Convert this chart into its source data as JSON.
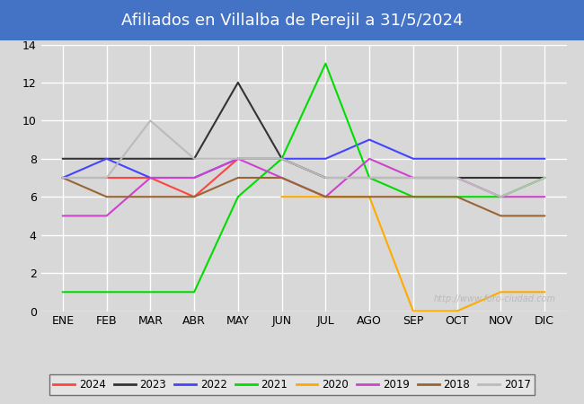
{
  "title": "Afiliados en Villalba de Perejil a 31/5/2024",
  "title_bg_color": "#4472c4",
  "title_text_color": "#ffffff",
  "months": [
    "ENE",
    "FEB",
    "MAR",
    "ABR",
    "MAY",
    "JUN",
    "JUL",
    "AGO",
    "SEP",
    "OCT",
    "NOV",
    "DIC"
  ],
  "ylim": [
    0,
    14
  ],
  "yticks": [
    0,
    2,
    4,
    6,
    8,
    10,
    12,
    14
  ],
  "watermark": "http://www.foro-ciudad.com",
  "series": {
    "2024": {
      "color": "#ff4444",
      "data": [
        7,
        7,
        7,
        6,
        8,
        null,
        null,
        null,
        null,
        null,
        null,
        null
      ]
    },
    "2023": {
      "color": "#333333",
      "data": [
        8,
        8,
        8,
        8,
        12,
        8,
        7,
        7,
        7,
        7,
        7,
        7
      ]
    },
    "2022": {
      "color": "#4444ff",
      "data": [
        7,
        8,
        7,
        7,
        8,
        8,
        8,
        9,
        8,
        8,
        8,
        8
      ]
    },
    "2021": {
      "color": "#00dd00",
      "data": [
        1,
        1,
        1,
        1,
        6,
        8,
        13,
        7,
        6,
        6,
        6,
        7
      ]
    },
    "2020": {
      "color": "#ffaa00",
      "data": [
        null,
        null,
        null,
        null,
        null,
        6,
        6,
        6,
        0,
        0,
        1,
        1
      ]
    },
    "2019": {
      "color": "#cc44cc",
      "data": [
        5,
        5,
        7,
        7,
        8,
        7,
        6,
        8,
        7,
        7,
        6,
        6
      ]
    },
    "2018": {
      "color": "#996633",
      "data": [
        7,
        6,
        6,
        6,
        7,
        7,
        6,
        6,
        6,
        6,
        5,
        5
      ]
    },
    "2017": {
      "color": "#bbbbbb",
      "data": [
        7,
        7,
        10,
        8,
        8,
        8,
        7,
        7,
        7,
        7,
        6,
        7
      ]
    }
  },
  "legend_order": [
    "2024",
    "2023",
    "2022",
    "2021",
    "2020",
    "2019",
    "2018",
    "2017"
  ],
  "bg_color": "#d8d8d8",
  "plot_bg_color": "#d8d8d8",
  "grid_color": "#ffffff",
  "watermark_color": "#bbbbbb",
  "title_fontsize": 13,
  "tick_fontsize": 9,
  "legend_fontsize": 8.5
}
